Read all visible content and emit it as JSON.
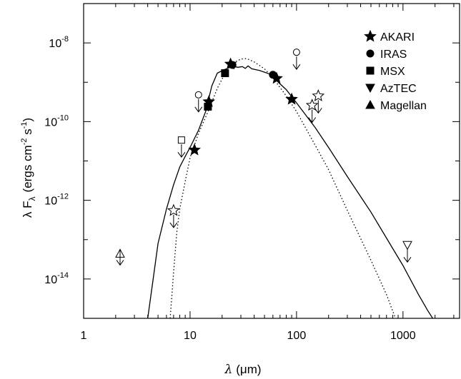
{
  "chart_data": {
    "type": "scatter",
    "xlabel_symbol": "λ",
    "xlabel_unit": "(μm)",
    "ylabel_main": "λ F",
    "ylabel_sub": "λ",
    "ylabel_units_a": "(ergs cm",
    "ylabel_units_exp1": "-2",
    "ylabel_units_b": " s",
    "ylabel_units_exp2": "-1",
    "ylabel_units_c": ")",
    "x_scale": "log",
    "y_scale": "log",
    "xlim": [
      1,
      3400
    ],
    "ylim": [
      1e-15,
      1e-07
    ],
    "x_ticks": [
      {
        "value": 1,
        "label": "1"
      },
      {
        "value": 10,
        "label": "10"
      },
      {
        "value": 100,
        "label": "100"
      },
      {
        "value": 1000,
        "label": "1000"
      }
    ],
    "y_ticks": [
      {
        "value": 1e-08,
        "base": "10",
        "exp": "-8"
      },
      {
        "value": 1e-10,
        "base": "10",
        "exp": "-10"
      },
      {
        "value": 1e-12,
        "base": "10",
        "exp": "-12"
      },
      {
        "value": 1e-14,
        "base": "10",
        "exp": "-14"
      }
    ],
    "legend_position": "top-right",
    "legend": [
      {
        "marker": "star",
        "label": "AKARI"
      },
      {
        "marker": "circle",
        "label": "IRAS"
      },
      {
        "marker": "square",
        "label": "MSX"
      },
      {
        "marker": "triangle-down",
        "label": "AzTEC"
      },
      {
        "marker": "triangle-up",
        "label": "Magellan"
      }
    ],
    "points": [
      {
        "instrument": "AKARI",
        "marker": "star",
        "filled": true,
        "x": 11,
        "y": 1.9e-11
      },
      {
        "instrument": "AKARI",
        "marker": "star",
        "filled": true,
        "x": 15,
        "y": 3.2e-10
      },
      {
        "instrument": "AKARI",
        "marker": "star",
        "filled": true,
        "x": 24,
        "y": 2.9e-09
      },
      {
        "instrument": "AKARI",
        "marker": "star",
        "filled": true,
        "x": 65,
        "y": 1.25e-09
      },
      {
        "instrument": "AKARI",
        "marker": "star",
        "filled": true,
        "x": 90,
        "y": 3.7e-10
      },
      {
        "instrument": "IRAS",
        "marker": "circle",
        "filled": true,
        "x": 25,
        "y": 2.75e-09
      },
      {
        "instrument": "IRAS",
        "marker": "circle",
        "filled": true,
        "x": 60,
        "y": 1.55e-09
      },
      {
        "instrument": "MSX",
        "marker": "square",
        "filled": true,
        "x": 14.7,
        "y": 2.4e-10
      },
      {
        "instrument": "MSX",
        "marker": "square",
        "filled": true,
        "x": 21.3,
        "y": 1.7e-09
      }
    ],
    "upper_limits": [
      {
        "instrument": "AKARI",
        "marker": "star",
        "x": 7,
        "y": 5.5e-13
      },
      {
        "instrument": "AKARI",
        "marker": "star",
        "x": 140,
        "y": 2.6e-10
      },
      {
        "instrument": "AKARI",
        "marker": "star",
        "x": 160,
        "y": 4.5e-10
      },
      {
        "instrument": "IRAS",
        "marker": "circle",
        "x": 12,
        "y": 4.8e-10
      },
      {
        "instrument": "IRAS",
        "marker": "circle",
        "x": 100,
        "y": 5.8e-09
      },
      {
        "instrument": "MSX",
        "marker": "square",
        "x": 8.3,
        "y": 3.4e-11
      },
      {
        "instrument": "AzTEC",
        "marker": "triangle-down",
        "x": 1100,
        "y": 7.3e-14
      },
      {
        "instrument": "Magellan",
        "marker": "triangle-up",
        "x": 2.2,
        "y": 4.4e-14
      }
    ],
    "models": [
      {
        "style": "solid",
        "points": [
          [
            4,
            1e-15
          ],
          [
            4.5,
            1e-14
          ],
          [
            5,
            8e-14
          ],
          [
            6,
            6e-13
          ],
          [
            7,
            2.5e-12
          ],
          [
            8,
            7e-12
          ],
          [
            9,
            1.3e-11
          ],
          [
            10,
            2.2e-11
          ],
          [
            12,
            6e-11
          ],
          [
            14,
            1.8e-10
          ],
          [
            16,
            8e-10
          ],
          [
            18,
            1.7e-09
          ],
          [
            21,
            2.1e-09
          ],
          [
            23,
            2.3e-09
          ],
          [
            25,
            2.6e-09
          ],
          [
            28,
            2.4e-09
          ],
          [
            31,
            2.5e-09
          ],
          [
            33,
            2.25e-09
          ],
          [
            35,
            2.6e-09
          ],
          [
            38,
            2.2e-09
          ],
          [
            45,
            2e-09
          ],
          [
            55,
            1.65e-09
          ],
          [
            65,
            1.1e-09
          ],
          [
            80,
            6.5e-10
          ],
          [
            100,
            3e-10
          ],
          [
            150,
            7e-11
          ],
          [
            200,
            2.2e-11
          ],
          [
            300,
            4e-12
          ],
          [
            500,
            5e-13
          ],
          [
            800,
            6e-14
          ],
          [
            1000,
            2.2e-14
          ],
          [
            1400,
            4e-15
          ],
          [
            1700,
            1.6e-15
          ],
          [
            1900,
            1e-15
          ]
        ]
      },
      {
        "style": "dotted",
        "points": [
          [
            6.5,
            1e-15
          ],
          [
            7,
            1.5e-14
          ],
          [
            7.5,
            1.5e-13
          ],
          [
            8,
            6e-13
          ],
          [
            9,
            3e-12
          ],
          [
            10,
            1.2e-11
          ],
          [
            12,
            5e-11
          ],
          [
            15,
            2e-10
          ],
          [
            18,
            7e-10
          ],
          [
            22,
            2e-09
          ],
          [
            26,
            3.2e-09
          ],
          [
            30,
            3.9e-09
          ],
          [
            34,
            4e-09
          ],
          [
            40,
            3.3e-09
          ],
          [
            50,
            2.2e-09
          ],
          [
            60,
            1.3e-09
          ],
          [
            80,
            4.5e-10
          ],
          [
            100,
            1.8e-10
          ],
          [
            150,
            2.5e-11
          ],
          [
            200,
            6e-12
          ],
          [
            300,
            5.5e-13
          ],
          [
            500,
            3e-14
          ],
          [
            700,
            4e-15
          ],
          [
            850,
            1e-15
          ]
        ]
      }
    ],
    "colors": {
      "ink": "#000000",
      "background": "#ffffff"
    }
  }
}
